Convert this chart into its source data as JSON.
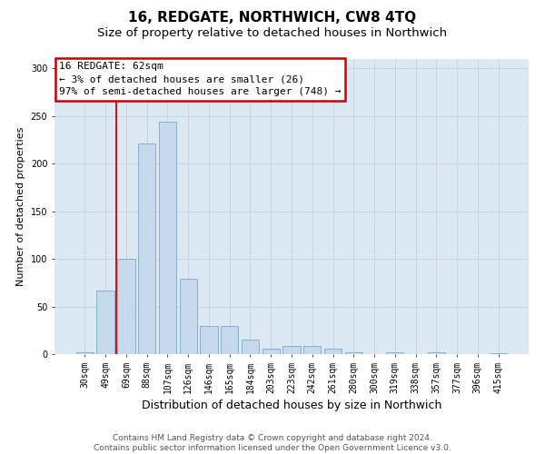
{
  "title": "16, REDGATE, NORTHWICH, CW8 4TQ",
  "subtitle": "Size of property relative to detached houses in Northwich",
  "xlabel": "Distribution of detached houses by size in Northwich",
  "ylabel": "Number of detached properties",
  "categories": [
    "30sqm",
    "49sqm",
    "69sqm",
    "88sqm",
    "107sqm",
    "126sqm",
    "146sqm",
    "165sqm",
    "184sqm",
    "203sqm",
    "223sqm",
    "242sqm",
    "261sqm",
    "280sqm",
    "300sqm",
    "319sqm",
    "338sqm",
    "357sqm",
    "377sqm",
    "396sqm",
    "415sqm"
  ],
  "values": [
    2,
    67,
    100,
    221,
    244,
    79,
    30,
    30,
    15,
    6,
    9,
    9,
    6,
    2,
    0,
    2,
    0,
    2,
    0,
    0,
    1
  ],
  "bar_color": "#c5d8ec",
  "bar_edge_color": "#7aaac8",
  "bar_width": 0.85,
  "redline_x": 1.5,
  "annotation_text": "16 REDGATE: 62sqm\n← 3% of detached houses are smaller (26)\n97% of semi-detached houses are larger (748) →",
  "annotation_box_facecolor": "#ffffff",
  "annotation_box_edgecolor": "#cc0000",
  "redline_color": "#cc0000",
  "ylim": [
    0,
    310
  ],
  "yticks": [
    0,
    50,
    100,
    150,
    200,
    250,
    300
  ],
  "grid_color": "#c5d5e5",
  "background_color": "#dce8f2",
  "footer_line1": "Contains HM Land Registry data © Crown copyright and database right 2024.",
  "footer_line2": "Contains public sector information licensed under the Open Government Licence v3.0.",
  "title_fontsize": 11,
  "subtitle_fontsize": 9.5,
  "xlabel_fontsize": 9,
  "ylabel_fontsize": 8,
  "tick_fontsize": 7,
  "annotation_fontsize": 8,
  "footer_fontsize": 6.5
}
